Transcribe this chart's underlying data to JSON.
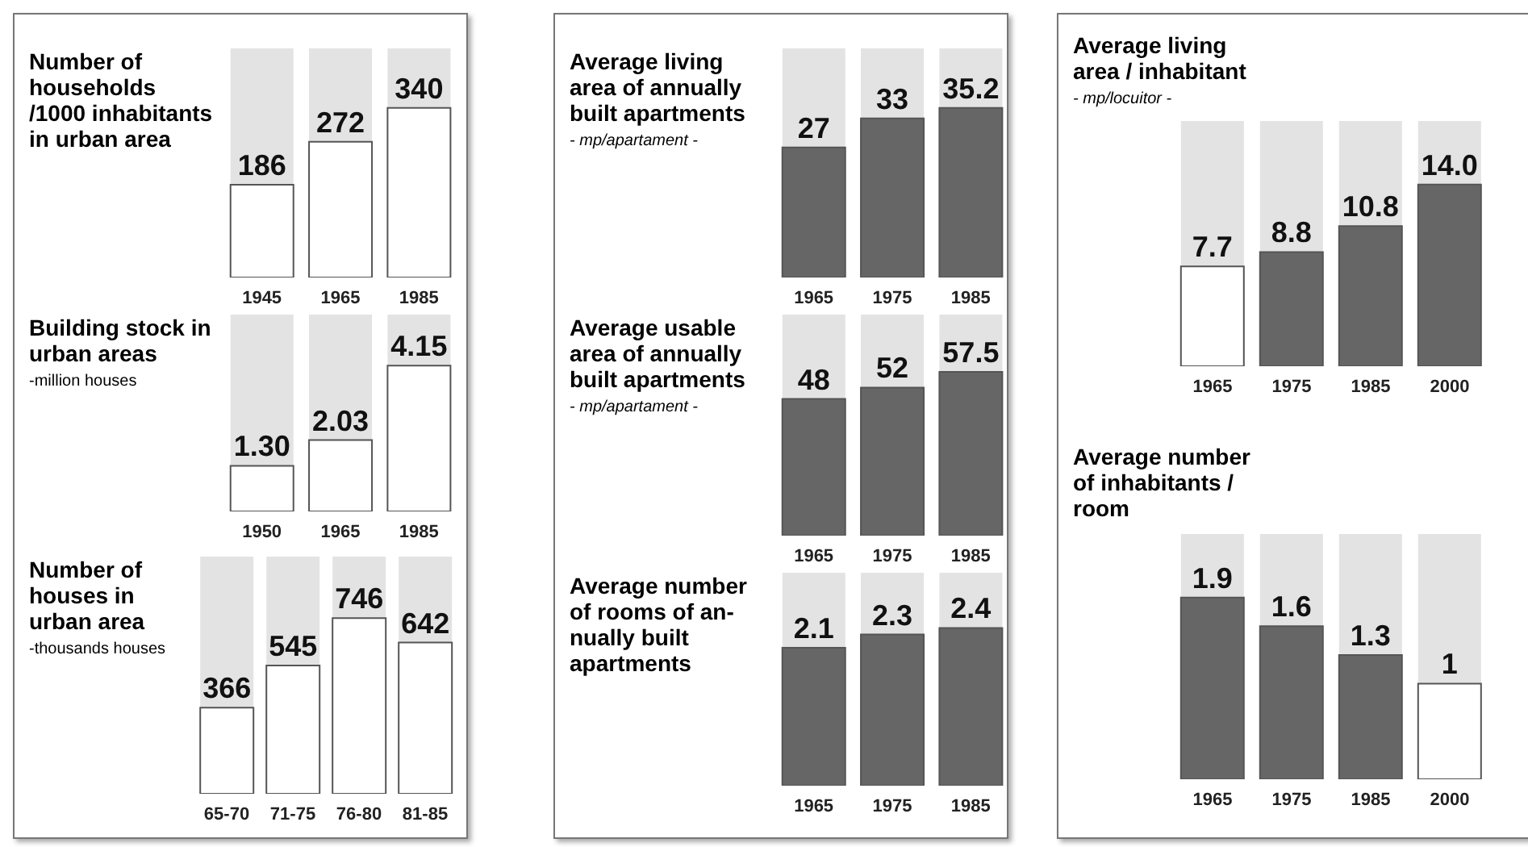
{
  "chart_data": [
    {
      "type": "bar",
      "title": "Number of\nhouseholds\n/1000 inhabitants\nin urban area",
      "categories": [
        "1945",
        "1965",
        "1985"
      ],
      "values": [
        186,
        272,
        340
      ],
      "color": "#ffffff",
      "data_labels": true
    },
    {
      "type": "bar",
      "title": "Building stock in\nurban areas",
      "subtitle": "-million houses",
      "categories": [
        "1950",
        "1965",
        "1985"
      ],
      "values": [
        1.3,
        2.03,
        4.15
      ],
      "value_labels": [
        "1.30",
        "2.03",
        "4.15"
      ],
      "color": "#ffffff"
    },
    {
      "type": "bar",
      "title": "Number of\nhouses in\nurban area",
      "subtitle": "-thousands houses",
      "categories": [
        "65-70",
        "71-75",
        "76-80",
        "81-85"
      ],
      "values": [
        366,
        545,
        746,
        642
      ],
      "color": "#ffffff",
      "data_labels": true
    },
    {
      "type": "bar",
      "title": "Average living\narea of annually\nbuilt apartments",
      "subtitle": "- mp/apartament -",
      "categories": [
        "1965",
        "1975",
        "1985"
      ],
      "values": [
        27,
        33,
        35.2
      ],
      "color": "#666666",
      "data_labels": true
    },
    {
      "type": "bar",
      "title": "Average usable\narea of annually\nbuilt apartments",
      "subtitle": "- mp/apartament -",
      "categories": [
        "1965",
        "1975",
        "1985"
      ],
      "values": [
        48,
        52,
        57.5
      ],
      "color": "#666666",
      "data_labels": true
    },
    {
      "type": "bar",
      "title": "Average number\nof rooms of an-\nnually built\napartments",
      "categories": [
        "1965",
        "1975",
        "1985"
      ],
      "values": [
        2.1,
        2.3,
        2.4
      ],
      "color": "#666666",
      "data_labels": true
    },
    {
      "type": "bar",
      "title": "Average living\narea / inhabitant",
      "subtitle": "- mp/locuitor -",
      "categories": [
        "1965",
        "1975",
        "1985",
        "2000"
      ],
      "values": [
        7.7,
        8.8,
        10.8,
        14.0
      ],
      "value_labels": [
        "7.7",
        "8.8",
        "10.8",
        "14.0"
      ],
      "colors": [
        "#ffffff",
        "#666666",
        "#666666",
        "#666666"
      ]
    },
    {
      "type": "bar",
      "title": "Average number\nof inhabitants /\nroom",
      "categories": [
        "1965",
        "1975",
        "1985",
        "2000"
      ],
      "values": [
        1.9,
        1.6,
        1.3,
        1
      ],
      "value_labels": [
        "1.9",
        "1.6",
        "1.3",
        "1"
      ],
      "colors": [
        "#666666",
        "#666666",
        "#666666",
        "#ffffff"
      ]
    }
  ]
}
